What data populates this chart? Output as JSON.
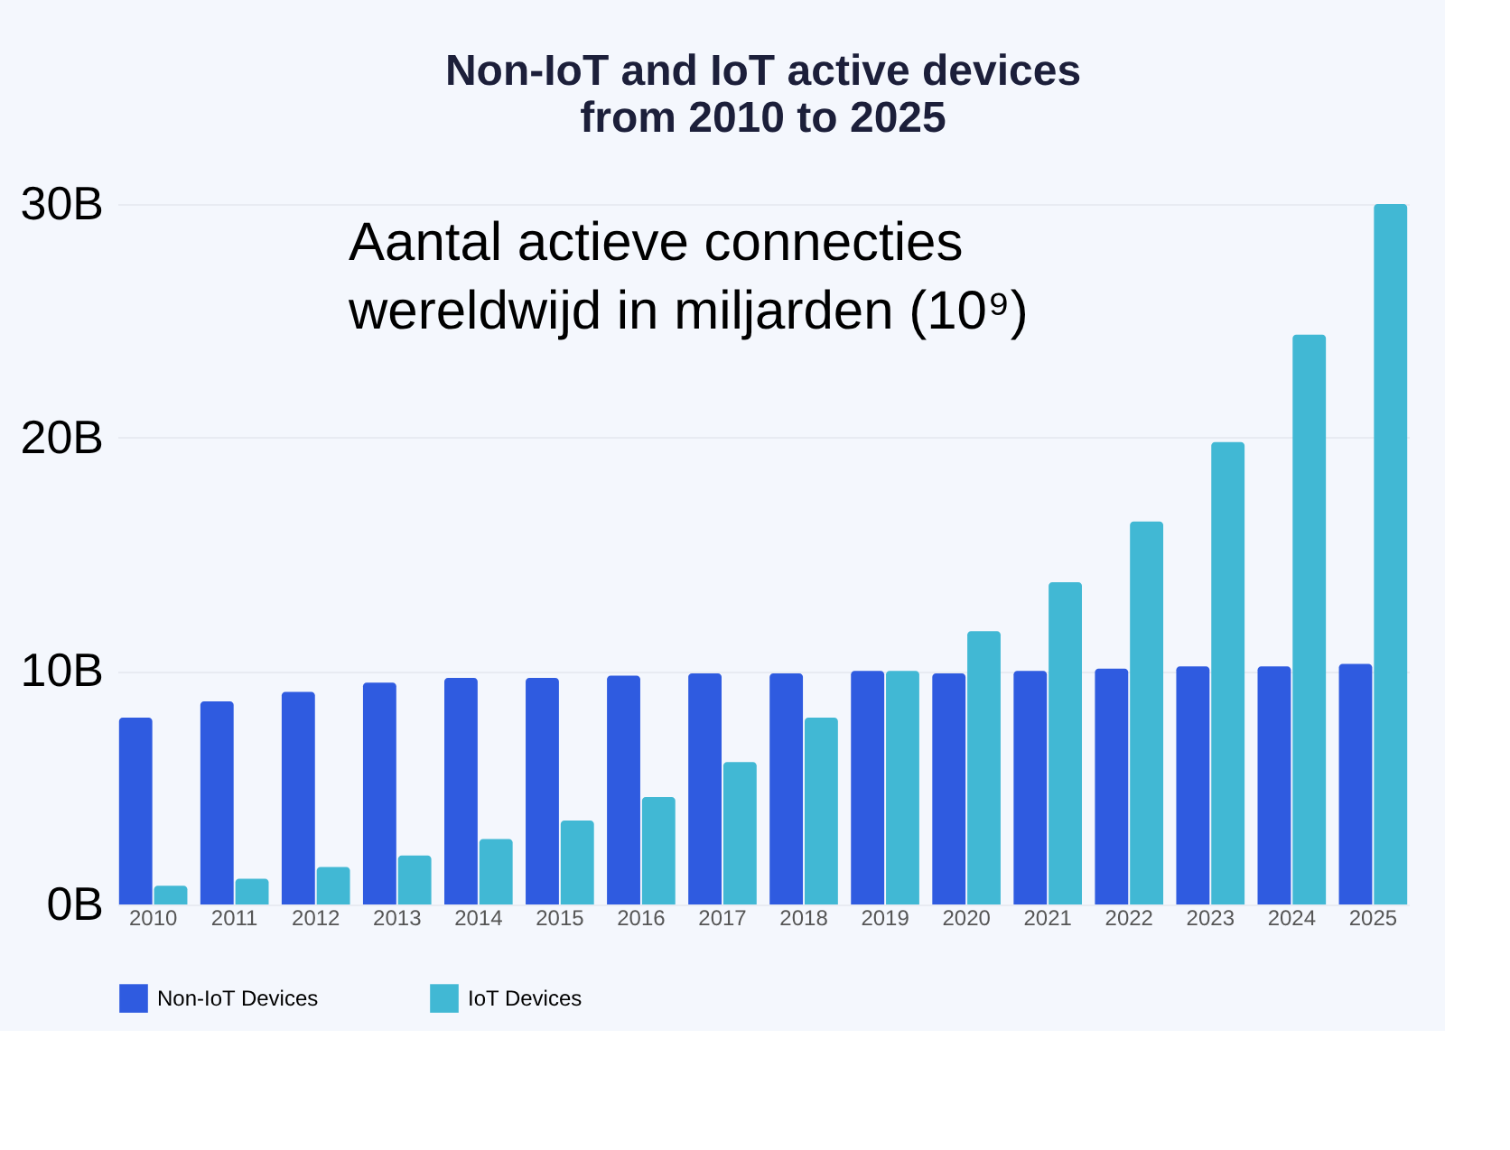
{
  "chart_data": {
    "type": "bar",
    "title": [
      "Non-IoT and IoT active devices",
      "from 2010 to 2025"
    ],
    "annotations": [
      "Aantal actieve connecties",
      "wereldwijd in miljarden (10⁹)"
    ],
    "categories": [
      "2010",
      "2011",
      "2012",
      "2013",
      "2014",
      "2015",
      "2016",
      "2017",
      "2018",
      "2019",
      "2020",
      "2021",
      "2022",
      "2023",
      "2024",
      "2025"
    ],
    "series": [
      {
        "name": "Non-IoT Devices",
        "color": "#2f5be0",
        "values": [
          8.0,
          8.7,
          9.1,
          9.5,
          9.7,
          9.7,
          9.8,
          9.9,
          9.9,
          10.0,
          9.9,
          10.0,
          10.1,
          10.2,
          10.2,
          10.3
        ]
      },
      {
        "name": "IoT Devices",
        "color": "#41b8d4",
        "values": [
          0.8,
          1.1,
          1.6,
          2.1,
          2.8,
          3.6,
          4.6,
          6.1,
          8.0,
          10.0,
          11.7,
          13.8,
          16.4,
          19.8,
          24.4,
          30.0
        ]
      }
    ],
    "ylim": [
      0,
      30
    ],
    "yticks": [
      {
        "value": 0,
        "label": "0B"
      },
      {
        "value": 10,
        "label": "10B"
      },
      {
        "value": 20,
        "label": "20B"
      },
      {
        "value": 30,
        "label": "30B"
      }
    ],
    "grid": "y",
    "legend": "bottom"
  }
}
